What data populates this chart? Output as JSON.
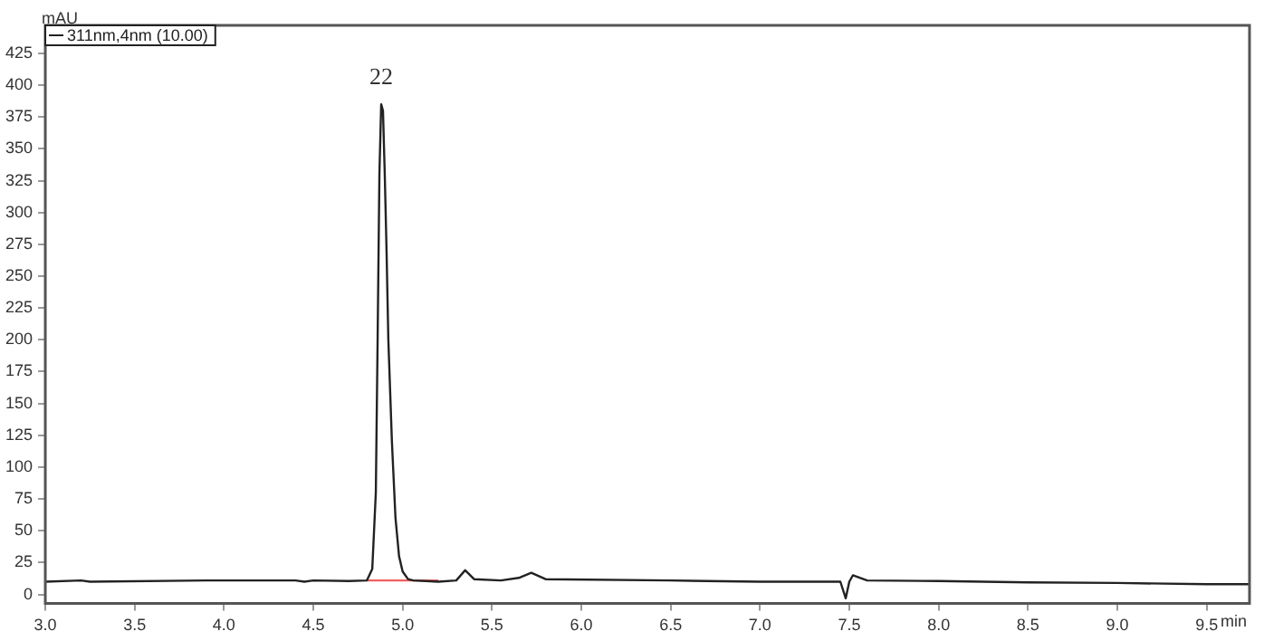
{
  "chart_data": {
    "type": "line",
    "xlabel": "min",
    "ylabel": "mAU",
    "legend": "top left",
    "grid": false,
    "marker": "none",
    "line_style": "solid",
    "xlim": [
      3.0,
      9.74
    ],
    "ylim": [
      -7,
      447
    ],
    "xticks": [
      {
        "value": 3,
        "label": "3.0"
      },
      {
        "value": 3.5,
        "label": "3.5"
      },
      {
        "value": 4,
        "label": "4.0"
      },
      {
        "value": 4.5,
        "label": "4.5"
      },
      {
        "value": 5,
        "label": "5.0"
      },
      {
        "value": 5.5,
        "label": "5.5"
      },
      {
        "value": 6,
        "label": "6.0"
      },
      {
        "value": 6.5,
        "label": "6.5"
      },
      {
        "value": 7,
        "label": "7.0"
      },
      {
        "value": 7.5,
        "label": "7.5"
      },
      {
        "value": 8,
        "label": "8.0"
      },
      {
        "value": 8.5,
        "label": "8.5"
      },
      {
        "value": 9,
        "label": "9.0"
      },
      {
        "value": 9.5,
        "label": "9.5"
      }
    ],
    "yticks": [
      0,
      25,
      50,
      75,
      100,
      125,
      150,
      175,
      200,
      225,
      250,
      275,
      300,
      325,
      350,
      375,
      400,
      425
    ],
    "annotations": [
      {
        "text": "22",
        "x": 4.88,
        "y": 385
      }
    ],
    "series": [
      {
        "name": "311nm,4nm (10.00)",
        "color": "#222222",
        "x": [
          3.0,
          3.2,
          3.25,
          3.9,
          4.4,
          4.45,
          4.5,
          4.7,
          4.8,
          4.83,
          4.85,
          4.86,
          4.87,
          4.88,
          4.89,
          4.9,
          4.91,
          4.92,
          4.94,
          4.96,
          4.98,
          5.0,
          5.03,
          5.06,
          5.2,
          5.3,
          5.35,
          5.4,
          5.55,
          5.65,
          5.72,
          5.8,
          6.5,
          6.7,
          7.0,
          7.45,
          7.48,
          7.5,
          7.52,
          7.6,
          8.0,
          8.5,
          9.0,
          9.5,
          9.74
        ],
        "values": [
          10,
          11,
          10,
          11,
          11,
          10,
          11,
          10.5,
          11,
          20,
          80,
          200,
          330,
          385,
          380,
          330,
          270,
          200,
          120,
          60,
          30,
          18,
          12,
          11,
          10,
          11,
          19,
          12,
          11,
          13,
          17,
          12,
          11,
          10.5,
          10,
          10,
          -3,
          10,
          15,
          11,
          10.5,
          9.5,
          9,
          8,
          8
        ]
      },
      {
        "color": "#f06060",
        "x": [
          4.8,
          5.2
        ],
        "values": [
          11,
          11
        ]
      }
    ]
  }
}
